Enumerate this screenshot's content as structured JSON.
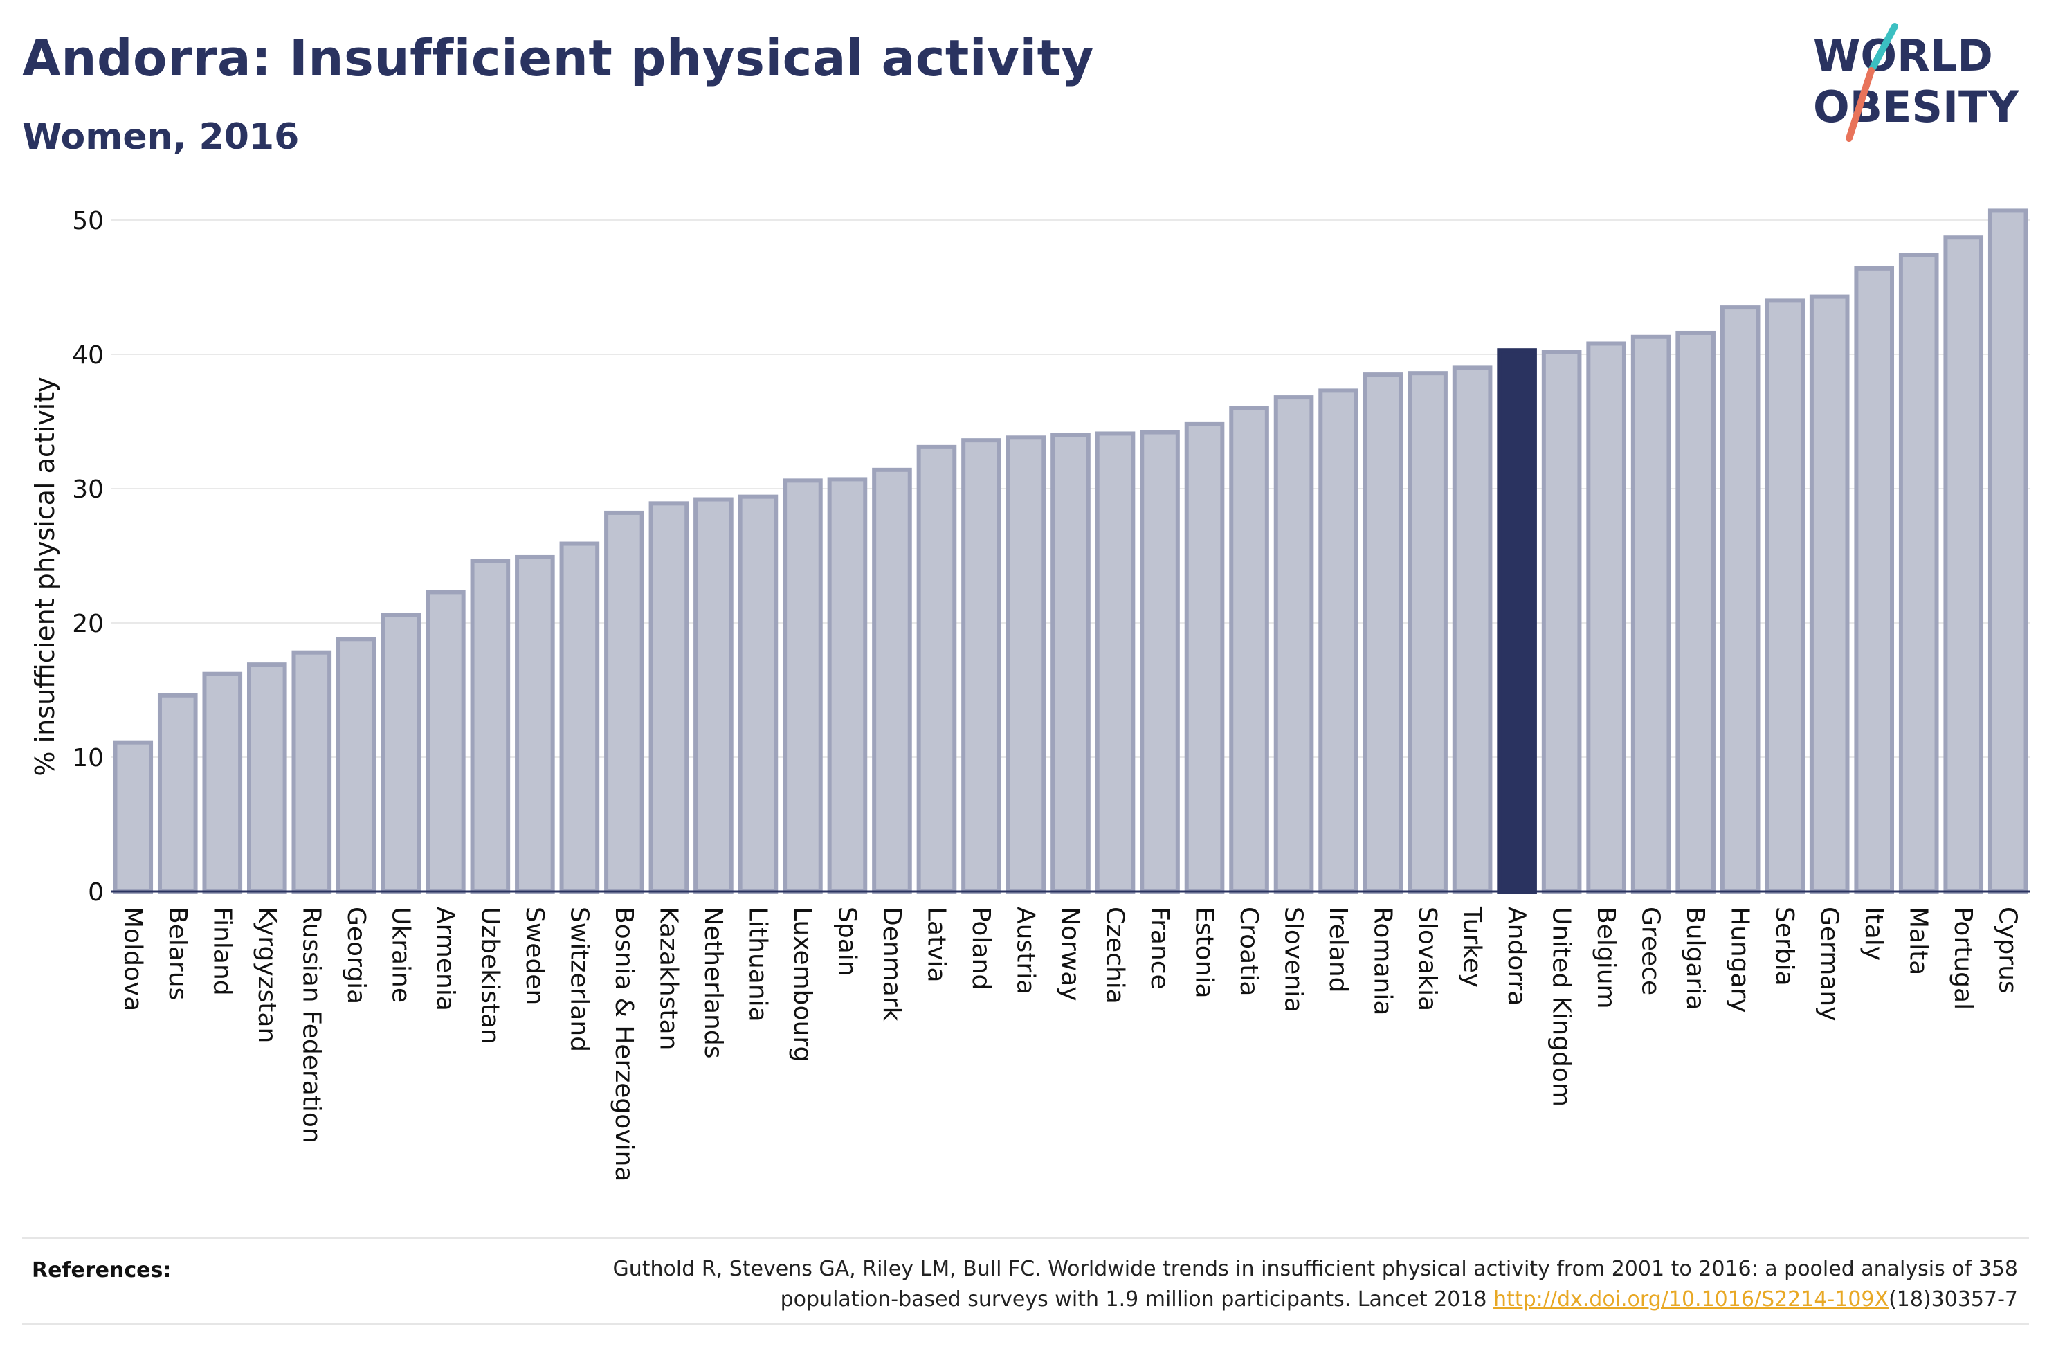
{
  "title": "Andorra: Insufficient physical activity",
  "subtitle": "Women, 2016",
  "logo": {
    "line1": "WORLD",
    "line2": "OBESITY",
    "colors": {
      "text": "#2a3360",
      "slash_teal": "#3bbfc1",
      "slash_coral": "#e8735a"
    }
  },
  "colors": {
    "bar": "#bfc3d1",
    "bar_stroke": "#9ea3bb",
    "highlight": "#2a3360",
    "grid": "#e9e9e9",
    "axis_text": "#111111"
  },
  "chart_data": {
    "type": "bar",
    "ylabel": "% insufficient physical activity",
    "ylim": [
      0,
      52
    ],
    "yticks": [
      0,
      10,
      20,
      30,
      40,
      50
    ],
    "highlight": "Andorra",
    "categories": [
      "Moldova",
      "Belarus",
      "Finland",
      "Kyrgyzstan",
      "Russian Federation",
      "Georgia",
      "Ukraine",
      "Armenia",
      "Uzbekistan",
      "Sweden",
      "Switzerland",
      "Bosnia & Herzegovina",
      "Kazakhstan",
      "Netherlands",
      "Lithuania",
      "Luxembourg",
      "Spain",
      "Denmark",
      "Latvia",
      "Poland",
      "Austria",
      "Norway",
      "Czechia",
      "France",
      "Estonia",
      "Croatia",
      "Slovenia",
      "Ireland",
      "Romania",
      "Slovakia",
      "Turkey",
      "Andorra",
      "United Kingdom",
      "Belgium",
      "Greece",
      "Bulgaria",
      "Hungary",
      "Serbia",
      "Germany",
      "Italy",
      "Malta",
      "Portugal",
      "Cyprus"
    ],
    "values": [
      11.1,
      14.6,
      16.2,
      16.9,
      17.8,
      18.8,
      20.6,
      22.3,
      24.6,
      24.9,
      25.9,
      28.2,
      28.9,
      29.2,
      29.4,
      30.6,
      30.7,
      31.4,
      33.1,
      33.6,
      33.8,
      34.0,
      34.1,
      34.2,
      34.8,
      36.0,
      36.8,
      37.3,
      38.5,
      38.6,
      39.0,
      40.3,
      40.2,
      40.8,
      41.3,
      41.6,
      43.5,
      44.0,
      44.3,
      46.4,
      47.4,
      48.7,
      50.7
    ]
  },
  "references": {
    "label": "References:",
    "text_line1": "Guthold R, Stevens GA, Riley LM, Bull FC. Worldwide trends in insufficient physical activity from 2001 to 2016: a pooled analysis of 358",
    "text_line2_pre": "population-based surveys with 1.9 million participants. Lancet 2018 ",
    "link": "http://dx.doi.org/10.1016/S2214-109X",
    "text_line2_post": "(18)30357-7"
  }
}
